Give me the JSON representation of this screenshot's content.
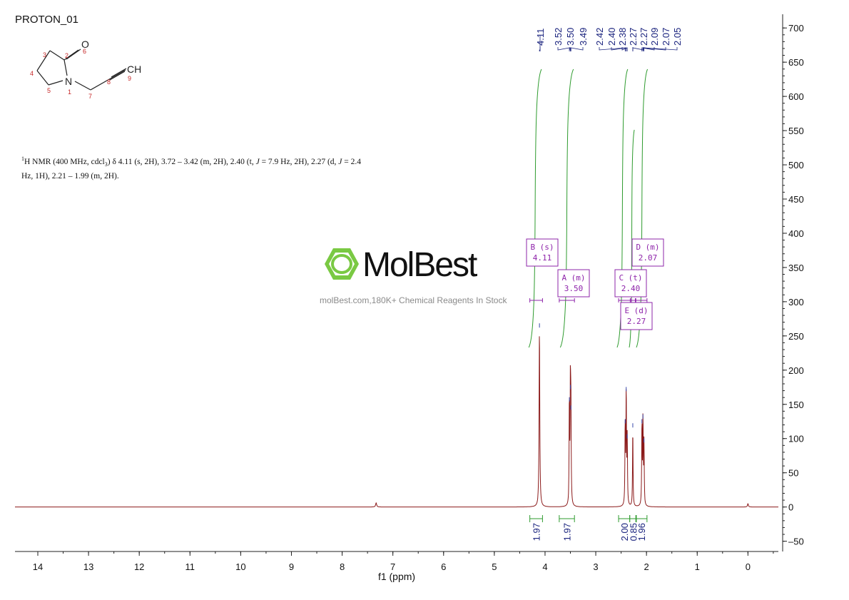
{
  "title": "PROTON_01",
  "nmr_text": {
    "sup": "1",
    "line1": "H NMR (400 MHz, cdcl",
    "sub": "3",
    "line1b": ") δ 4.11 (s, 2H), 3.72 – 3.42 (m, 2H), 2.40 (t, ",
    "j1": "J",
    "line1c": " = 7.9 Hz, 2H), 2.27 (d, ",
    "j2": "J",
    "line1d": " = 2.4",
    "line2": "Hz, 1H), 2.21 – 1.99 (m, 2H)."
  },
  "watermark": {
    "brand": "MolBest",
    "tagline": "molBest.com,180K+ Chemical Reagents In Stock"
  },
  "structure": {
    "atoms": [
      "O",
      "N",
      "CH"
    ],
    "numbers": [
      "1",
      "2",
      "3",
      "4",
      "5",
      "6",
      "7",
      "8",
      "9"
    ]
  },
  "chart_data": {
    "type": "line",
    "xlabel": "f1 (ppm)",
    "xlim": [
      14.45,
      -0.6
    ],
    "ylim": [
      -65,
      720
    ],
    "x_ticks": [
      14,
      13,
      12,
      11,
      10,
      9,
      8,
      7,
      6,
      5,
      4,
      3,
      2,
      1,
      0
    ],
    "y_ticks": [
      -50,
      0,
      50,
      100,
      150,
      200,
      250,
      300,
      350,
      400,
      450,
      500,
      550,
      600,
      650,
      700
    ],
    "peaks": [
      {
        "ppm": 7.33,
        "height": 6,
        "width": 0.012
      },
      {
        "ppm": 4.11,
        "height": 258,
        "width": 0.008
      },
      {
        "ppm": 3.52,
        "height": 150,
        "width": 0.006
      },
      {
        "ppm": 3.5,
        "height": 168,
        "width": 0.006
      },
      {
        "ppm": 3.49,
        "height": 138,
        "width": 0.006
      },
      {
        "ppm": 2.42,
        "height": 118,
        "width": 0.006
      },
      {
        "ppm": 2.4,
        "height": 165,
        "width": 0.006
      },
      {
        "ppm": 2.38,
        "height": 96,
        "width": 0.006
      },
      {
        "ppm": 2.27,
        "height": 112,
        "width": 0.006
      },
      {
        "ppm": 2.09,
        "height": 118,
        "width": 0.006
      },
      {
        "ppm": 2.07,
        "height": 125,
        "width": 0.006
      },
      {
        "ppm": 2.05,
        "height": 90,
        "width": 0.006
      },
      {
        "ppm": 0.0,
        "height": 5,
        "width": 0.01
      }
    ],
    "peak_labels": [
      "4.11",
      "3.52",
      "3.50",
      "3.49",
      "2.42",
      "2.40",
      "2.38",
      "2.27",
      "2.27",
      "2.09",
      "2.07",
      "2.05"
    ],
    "integrations": [
      {
        "from": 4.3,
        "to": 4.05,
        "value": "1.97"
      },
      {
        "from": 3.72,
        "to": 3.42,
        "value": "1.97"
      },
      {
        "from": 2.55,
        "to": 2.33,
        "value": "2.00"
      },
      {
        "from": 2.33,
        "to": 2.2,
        "value": "0.85"
      },
      {
        "from": 2.21,
        "to": 1.99,
        "value": "1.96"
      }
    ],
    "multiplets": [
      {
        "letter": "B (s)",
        "shift": "4.11"
      },
      {
        "letter": "A (m)",
        "shift": "3.50"
      },
      {
        "letter": "C (t)",
        "shift": "2.40"
      },
      {
        "letter": "D (m)",
        "shift": "2.07"
      },
      {
        "letter": "E (d)",
        "shift": "2.27"
      }
    ]
  },
  "colors": {
    "spectrum": "#8b1a1a",
    "integral": "#2e9b2e",
    "peak_label": "#1a237e",
    "multiplet": "#8e24aa",
    "brand_green": "#7ac943"
  }
}
